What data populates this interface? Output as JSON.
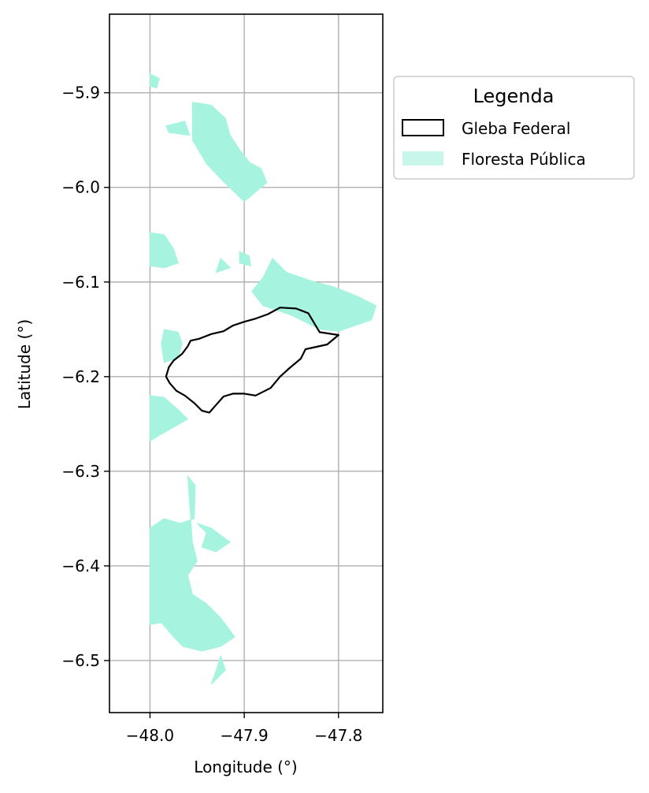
{
  "chart_data": {
    "type": "map",
    "xlabel": "Longitude (°)",
    "ylabel": "Latitude (°)",
    "xlim": [
      -48.043,
      -47.753
    ],
    "ylim": [
      -6.555,
      -5.817
    ],
    "x_ticks": [
      -48.0,
      -47.9,
      -47.8
    ],
    "x_tick_labels": [
      "−48.0",
      "−47.9",
      "−47.8"
    ],
    "y_ticks": [
      -5.9,
      -6.0,
      -6.1,
      -6.2,
      -6.3,
      -6.4,
      -6.5
    ],
    "y_tick_labels": [
      "−5.9",
      "−6.0",
      "−6.1",
      "−6.2",
      "−6.3",
      "−6.4",
      "−6.5"
    ],
    "grid": true,
    "legend": {
      "title": "Legenda",
      "placement": "outside-upper-right",
      "entries": [
        {
          "label": "Gleba Federal",
          "style": "outline",
          "color": "#000000"
        },
        {
          "label": "Floresta Pública",
          "style": "fill",
          "color": "#a6f3df"
        }
      ]
    },
    "colors": {
      "forest_fill": "#a6f3df",
      "gleba_outline": "#000000",
      "grid": "#b0b0b0"
    },
    "gleba_federal": [
      [
        -47.957,
        -6.162
      ],
      [
        -47.948,
        -6.16
      ],
      [
        -47.935,
        -6.155
      ],
      [
        -47.922,
        -6.152
      ],
      [
        -47.912,
        -6.146
      ],
      [
        -47.9,
        -6.142
      ],
      [
        -47.889,
        -6.139
      ],
      [
        -47.875,
        -6.134
      ],
      [
        -47.862,
        -6.127
      ],
      [
        -47.845,
        -6.128
      ],
      [
        -47.832,
        -6.133
      ],
      [
        -47.82,
        -6.153
      ],
      [
        -47.8,
        -6.156
      ],
      [
        -47.812,
        -6.166
      ],
      [
        -47.835,
        -6.171
      ],
      [
        -47.84,
        -6.181
      ],
      [
        -47.852,
        -6.191
      ],
      [
        -47.862,
        -6.2
      ],
      [
        -47.872,
        -6.212
      ],
      [
        -47.888,
        -6.22
      ],
      [
        -47.9,
        -6.218
      ],
      [
        -47.912,
        -6.218
      ],
      [
        -47.922,
        -6.221
      ],
      [
        -47.93,
        -6.23
      ],
      [
        -47.937,
        -6.238
      ],
      [
        -47.945,
        -6.236
      ],
      [
        -47.953,
        -6.228
      ],
      [
        -47.963,
        -6.22
      ],
      [
        -47.972,
        -6.215
      ],
      [
        -47.979,
        -6.207
      ],
      [
        -47.983,
        -6.2
      ],
      [
        -47.98,
        -6.19
      ],
      [
        -47.975,
        -6.183
      ],
      [
        -47.966,
        -6.176
      ],
      [
        -47.96,
        -6.168
      ],
      [
        -47.957,
        -6.162
      ]
    ],
    "floresta_publica": [
      [
        [
          -47.955,
          -5.91
        ],
        [
          -47.935,
          -5.913
        ],
        [
          -47.92,
          -5.927
        ],
        [
          -47.915,
          -5.945
        ],
        [
          -47.905,
          -5.96
        ],
        [
          -47.894,
          -5.974
        ],
        [
          -47.882,
          -5.98
        ],
        [
          -47.876,
          -5.995
        ],
        [
          -47.9,
          -6.015
        ],
        [
          -47.924,
          -5.992
        ],
        [
          -47.94,
          -5.975
        ],
        [
          -47.955,
          -5.95
        ]
      ],
      [
        [
          -47.983,
          -5.935
        ],
        [
          -47.963,
          -5.93
        ],
        [
          -47.958,
          -5.945
        ],
        [
          -47.98,
          -5.942
        ]
      ],
      [
        [
          -48.0,
          -5.88
        ],
        [
          -47.99,
          -5.885
        ],
        [
          -47.993,
          -5.895
        ],
        [
          -48.0,
          -5.893
        ]
      ],
      [
        [
          -48.0,
          -6.048
        ],
        [
          -47.985,
          -6.05
        ],
        [
          -47.975,
          -6.065
        ],
        [
          -47.97,
          -6.08
        ],
        [
          -47.985,
          -6.085
        ],
        [
          -48.0,
          -6.083
        ]
      ],
      [
        [
          -47.87,
          -6.075
        ],
        [
          -47.855,
          -6.09
        ],
        [
          -47.825,
          -6.1
        ],
        [
          -47.805,
          -6.105
        ],
        [
          -47.78,
          -6.115
        ],
        [
          -47.76,
          -6.125
        ],
        [
          -47.765,
          -6.14
        ],
        [
          -47.8,
          -6.152
        ],
        [
          -47.82,
          -6.15
        ],
        [
          -47.85,
          -6.135
        ],
        [
          -47.88,
          -6.125
        ],
        [
          -47.892,
          -6.11
        ],
        [
          -47.88,
          -6.095
        ]
      ],
      [
        [
          -47.905,
          -6.068
        ],
        [
          -47.895,
          -6.072
        ],
        [
          -47.893,
          -6.083
        ],
        [
          -47.905,
          -6.08
        ]
      ],
      [
        [
          -47.925,
          -6.075
        ],
        [
          -47.915,
          -6.085
        ],
        [
          -47.93,
          -6.09
        ]
      ],
      [
        [
          -47.985,
          -6.15
        ],
        [
          -47.97,
          -6.153
        ],
        [
          -47.966,
          -6.165
        ],
        [
          -47.97,
          -6.18
        ],
        [
          -47.985,
          -6.185
        ],
        [
          -47.988,
          -6.165
        ]
      ],
      [
        [
          -48.0,
          -6.22
        ],
        [
          -47.985,
          -6.222
        ],
        [
          -47.97,
          -6.235
        ],
        [
          -47.96,
          -6.245
        ],
        [
          -47.99,
          -6.262
        ],
        [
          -48.0,
          -6.268
        ]
      ],
      [
        [
          -47.96,
          -6.305
        ],
        [
          -47.952,
          -6.315
        ],
        [
          -47.953,
          -6.35
        ],
        [
          -47.968,
          -6.355
        ],
        [
          -47.985,
          -6.35
        ],
        [
          -48.0,
          -6.36
        ],
        [
          -48.0,
          -6.462
        ],
        [
          -47.988,
          -6.46
        ],
        [
          -47.975,
          -6.475
        ],
        [
          -47.965,
          -6.485
        ],
        [
          -47.945,
          -6.49
        ],
        [
          -47.925,
          -6.485
        ],
        [
          -47.91,
          -6.475
        ],
        [
          -47.925,
          -6.455
        ],
        [
          -47.94,
          -6.44
        ],
        [
          -47.955,
          -6.43
        ],
        [
          -47.96,
          -6.41
        ],
        [
          -47.95,
          -6.395
        ],
        [
          -47.955,
          -6.375
        ]
      ],
      [
        [
          -47.95,
          -6.355
        ],
        [
          -47.94,
          -6.365
        ],
        [
          -47.945,
          -6.38
        ],
        [
          -47.93,
          -6.385
        ],
        [
          -47.915,
          -6.375
        ],
        [
          -47.935,
          -6.36
        ]
      ],
      [
        [
          -47.925,
          -6.495
        ],
        [
          -47.92,
          -6.51
        ],
        [
          -47.935,
          -6.525
        ],
        [
          -47.928,
          -6.505
        ]
      ]
    ]
  }
}
